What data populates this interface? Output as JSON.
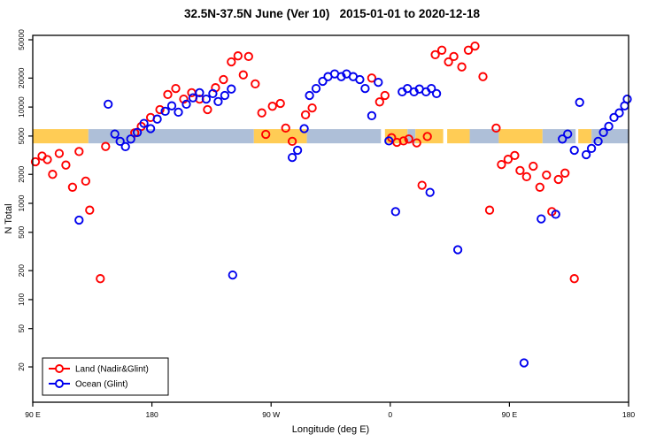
{
  "title": "32.5N-37.5N June (Ver 10)   2015-01-01 to 2020-12-18",
  "chart_data": {
    "type": "scatter",
    "title": "32.5N-37.5N June (Ver 10)   2015-01-01 to 2020-12-18",
    "xlabel": "Longitude (deg E)",
    "ylabel": "N Total",
    "x_axis": {
      "range": [
        0,
        450
      ],
      "note": "degrees eastward from 90E, wrapping through 180, 90W, 0, 90E to 180",
      "ticks": [
        {
          "pos": 0,
          "label": "90 E"
        },
        {
          "pos": 90,
          "label": "180"
        },
        {
          "pos": 180,
          "label": "90 W"
        },
        {
          "pos": 270,
          "label": "0"
        },
        {
          "pos": 360,
          "label": "90 E"
        },
        {
          "pos": 450,
          "label": "180"
        }
      ]
    },
    "y_axis": {
      "scale": "log",
      "min": 8.6,
      "max": 55600,
      "ticks": [
        20,
        50,
        100,
        200,
        500,
        1000,
        2000,
        5000,
        10000,
        20000,
        50000
      ]
    },
    "band": {
      "y_low": 4200,
      "y_high": 5900,
      "land_color": "#ffcc55",
      "ocean_color": "#aebfd8",
      "segments": [
        {
          "from": 0,
          "to": 42,
          "surface": "land"
        },
        {
          "from": 42,
          "to": 167,
          "surface": "ocean"
        },
        {
          "from": 167,
          "to": 207,
          "surface": "land"
        },
        {
          "from": 207,
          "to": 263,
          "surface": "ocean"
        },
        {
          "from": 266,
          "to": 283,
          "surface": "land"
        },
        {
          "from": 283,
          "to": 289,
          "surface": "ocean"
        },
        {
          "from": 289,
          "to": 310,
          "surface": "land"
        },
        {
          "from": 313,
          "to": 330,
          "surface": "land"
        },
        {
          "from": 330,
          "to": 352,
          "surface": "ocean"
        },
        {
          "from": 352,
          "to": 385,
          "surface": "land"
        },
        {
          "from": 385,
          "to": 410,
          "surface": "ocean"
        },
        {
          "from": 412,
          "to": 422,
          "surface": "land"
        },
        {
          "from": 422,
          "to": 450,
          "surface": "ocean"
        }
      ]
    },
    "series": [
      {
        "name": "Land (Nadir&Glint)",
        "color": "#ff0000",
        "points": [
          [
            2,
            2700
          ],
          [
            7,
            3100
          ],
          [
            11,
            2850
          ],
          [
            15,
            2000
          ],
          [
            20,
            3300
          ],
          [
            25,
            2500
          ],
          [
            30,
            1470
          ],
          [
            35,
            3450
          ],
          [
            40,
            1700
          ],
          [
            43,
            850
          ],
          [
            51,
            165
          ],
          [
            55,
            3900
          ],
          [
            77,
            5400
          ],
          [
            82,
            6300
          ],
          [
            89,
            7800
          ],
          [
            96,
            9400
          ],
          [
            102,
            13500
          ],
          [
            108,
            15600
          ],
          [
            114,
            12100
          ],
          [
            120,
            14100
          ],
          [
            126,
            12100
          ],
          [
            132,
            9400
          ],
          [
            138,
            15900
          ],
          [
            144,
            19300
          ],
          [
            150,
            29500
          ],
          [
            155,
            34000
          ],
          [
            159,
            21600
          ],
          [
            163,
            33500
          ],
          [
            168,
            17400
          ],
          [
            173,
            8700
          ],
          [
            176,
            5200
          ],
          [
            181,
            10200
          ],
          [
            187,
            10900
          ],
          [
            191,
            6050
          ],
          [
            196,
            4400
          ],
          [
            206,
            8300
          ],
          [
            211,
            9800
          ],
          [
            256,
            20000
          ],
          [
            262,
            11300
          ],
          [
            266,
            13200
          ],
          [
            271,
            4800
          ],
          [
            275,
            4300
          ],
          [
            280,
            4450
          ],
          [
            284,
            4650
          ],
          [
            290,
            4250
          ],
          [
            294,
            1540
          ],
          [
            298,
            4950
          ],
          [
            304,
            35000
          ],
          [
            309,
            39000
          ],
          [
            314,
            29500
          ],
          [
            318,
            33500
          ],
          [
            324,
            26100
          ],
          [
            329,
            39000
          ],
          [
            334,
            43000
          ],
          [
            340,
            20700
          ],
          [
            345,
            850
          ],
          [
            350,
            6050
          ],
          [
            354,
            2530
          ],
          [
            359,
            2870
          ],
          [
            364,
            3140
          ],
          [
            368,
            2190
          ],
          [
            373,
            1890
          ],
          [
            378,
            2430
          ],
          [
            383,
            1470
          ],
          [
            388,
            1970
          ],
          [
            392,
            820
          ],
          [
            397,
            1770
          ],
          [
            402,
            2060
          ],
          [
            409,
            165
          ]
        ]
      },
      {
        "name": "Ocean (Glint)",
        "color": "#0000ee",
        "points": [
          [
            35,
            670
          ],
          [
            57,
            10700
          ],
          [
            62,
            5250
          ],
          [
            66,
            4400
          ],
          [
            70,
            3880
          ],
          [
            74,
            4650
          ],
          [
            79,
            5450
          ],
          [
            84,
            6770
          ],
          [
            89,
            5970
          ],
          [
            94,
            7500
          ],
          [
            100,
            9030
          ],
          [
            105,
            10300
          ],
          [
            110,
            8840
          ],
          [
            116,
            10700
          ],
          [
            121,
            12500
          ],
          [
            126,
            14100
          ],
          [
            131,
            12100
          ],
          [
            136,
            13800
          ],
          [
            140,
            11400
          ],
          [
            145,
            13200
          ],
          [
            150,
            15400
          ],
          [
            151,
            180
          ],
          [
            196,
            3000
          ],
          [
            200,
            3560
          ],
          [
            205,
            5970
          ],
          [
            209,
            13200
          ],
          [
            214,
            15600
          ],
          [
            219,
            18500
          ],
          [
            223,
            20700
          ],
          [
            228,
            22100
          ],
          [
            233,
            20700
          ],
          [
            237,
            22100
          ],
          [
            242,
            20700
          ],
          [
            247,
            19300
          ],
          [
            251,
            15600
          ],
          [
            256,
            8130
          ],
          [
            261,
            18100
          ],
          [
            269,
            4450
          ],
          [
            274,
            820
          ],
          [
            279,
            14400
          ],
          [
            283,
            15600
          ],
          [
            288,
            14400
          ],
          [
            292,
            15400
          ],
          [
            297,
            14400
          ],
          [
            300,
            1300
          ],
          [
            301,
            15600
          ],
          [
            305,
            13800
          ],
          [
            321,
            330
          ],
          [
            371,
            22
          ],
          [
            384,
            690
          ],
          [
            395,
            770
          ],
          [
            400,
            4650
          ],
          [
            404,
            5250
          ],
          [
            409,
            3560
          ],
          [
            413,
            11200
          ],
          [
            418,
            3200
          ],
          [
            422,
            3720
          ],
          [
            427,
            4400
          ],
          [
            431,
            5450
          ],
          [
            435,
            6310
          ],
          [
            439,
            7800
          ],
          [
            443,
            8700
          ],
          [
            447,
            10300
          ],
          [
            449,
            12100
          ]
        ]
      }
    ],
    "legend": {
      "position": "bottom-left",
      "entries": [
        {
          "label": "Land (Nadir&Glint)",
          "color": "#ff0000"
        },
        {
          "label": "Ocean (Glint)",
          "color": "#0000ee"
        }
      ]
    }
  }
}
